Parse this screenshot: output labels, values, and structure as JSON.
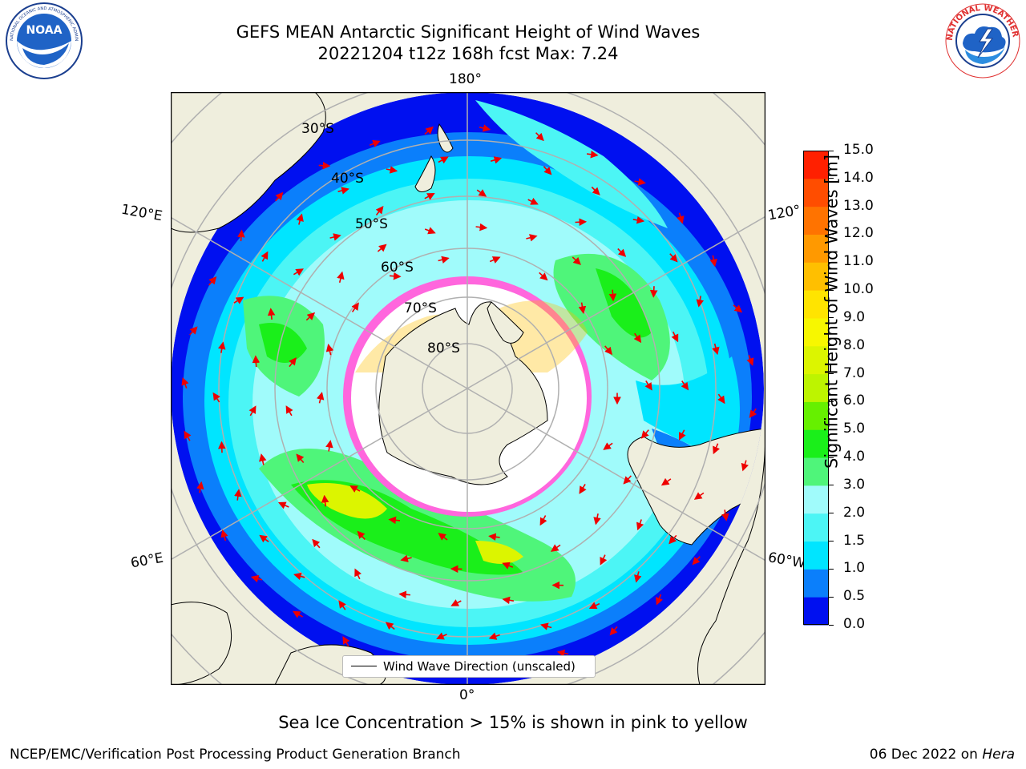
{
  "header": {
    "title_line1": "GEFS MEAN Antarctic Significant Height of Wind Waves",
    "title_line2": "20221204 t12z 168h fcst   Max: 7.24"
  },
  "map": {
    "projection": "south-polar-stereographic",
    "longitude_labels": [
      "180°",
      "120°E",
      "120°",
      "60°E",
      "60°W",
      "0°"
    ],
    "latitude_labels": [
      "30°S",
      "40°S",
      "50°S",
      "60°S",
      "70°S",
      "80°S"
    ],
    "legend_label": "Wind Wave Direction (unscaled)",
    "ice_note": "Sea Ice Concentration > 15% is shown in pink to yellow",
    "colors": {
      "land": "#efeedd",
      "ice": "#ffffff",
      "ice_edge": "#ff66dd",
      "arrow": "#ee0000",
      "grid": "#b0b0b0"
    }
  },
  "colorbar": {
    "label": "Significant Height of Wind Waves [m]",
    "ticks": [
      "0.0",
      "0.5",
      "1.0",
      "1.5",
      "2.0",
      "3.0",
      "4.0",
      "5.0",
      "6.0",
      "7.0",
      "8.0",
      "9.0",
      "10.0",
      "11.0",
      "12.0",
      "13.0",
      "14.0",
      "15.0"
    ],
    "colors": [
      "#0010f0",
      "#0b7ffb",
      "#00e5ff",
      "#4cf5f5",
      "#a0fbfb",
      "#4ff57a",
      "#1aef1a",
      "#66f000",
      "#bdf400",
      "#dcf500",
      "#f7f700",
      "#ffe400",
      "#ffbf00",
      "#ff9900",
      "#ff7300",
      "#ff4d00",
      "#ff2000"
    ]
  },
  "logos": {
    "noaa": {
      "text": "NOAA",
      "ring_text": "NATIONAL OCEANIC AND ATMOSPHERIC ADMINISTRATION · U.S. DEPARTMENT OF COMMERCE"
    },
    "nws": {
      "ring_text": "NATIONAL WEATHER SERVICE"
    }
  },
  "footer": {
    "left": "NCEP/EMC/Verification Post Processing Product Generation Branch",
    "right_prefix": "06 Dec 2022 on ",
    "right_italic": "Hera"
  }
}
